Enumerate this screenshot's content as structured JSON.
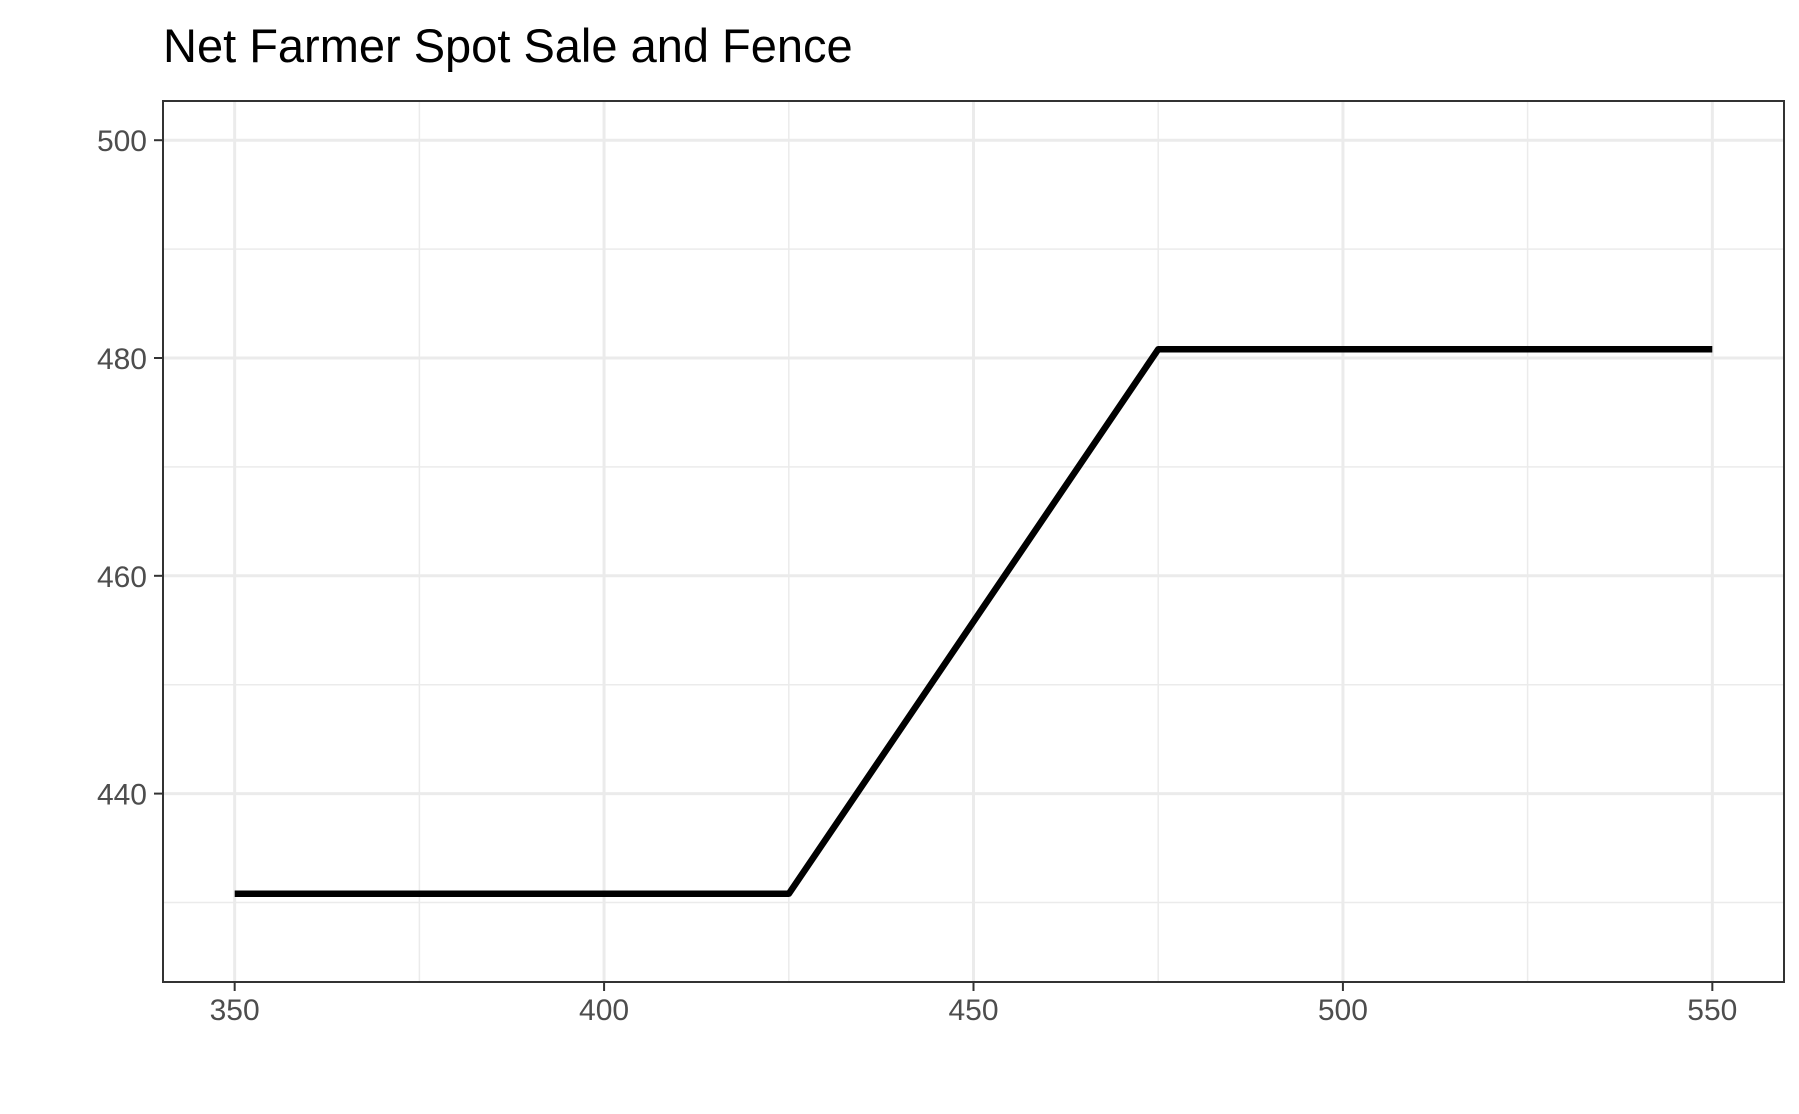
{
  "chart_data": {
    "type": "line",
    "title": "Net Farmer Spot Sale and Fence",
    "xlabel": "",
    "ylabel": "",
    "xlim": [
      340.3,
      559.7
    ],
    "ylim": [
      422.7,
      503.6
    ],
    "x_ticks": [
      350,
      400,
      450,
      500,
      550
    ],
    "x_tick_labels": [
      "350",
      "400",
      "450",
      "500",
      "550"
    ],
    "y_ticks": [
      440,
      460,
      480,
      500
    ],
    "y_tick_labels": [
      "440",
      "460",
      "480",
      "500"
    ],
    "x_minor": [
      375,
      425,
      475,
      525
    ],
    "y_minor": [
      430,
      450,
      470,
      490
    ],
    "grid": true,
    "legend": "none",
    "line_color": "#000000",
    "series": [
      {
        "x": [
          350,
          425,
          475,
          550
        ],
        "y": [
          430.8,
          430.8,
          480.8,
          480.8
        ]
      }
    ]
  }
}
